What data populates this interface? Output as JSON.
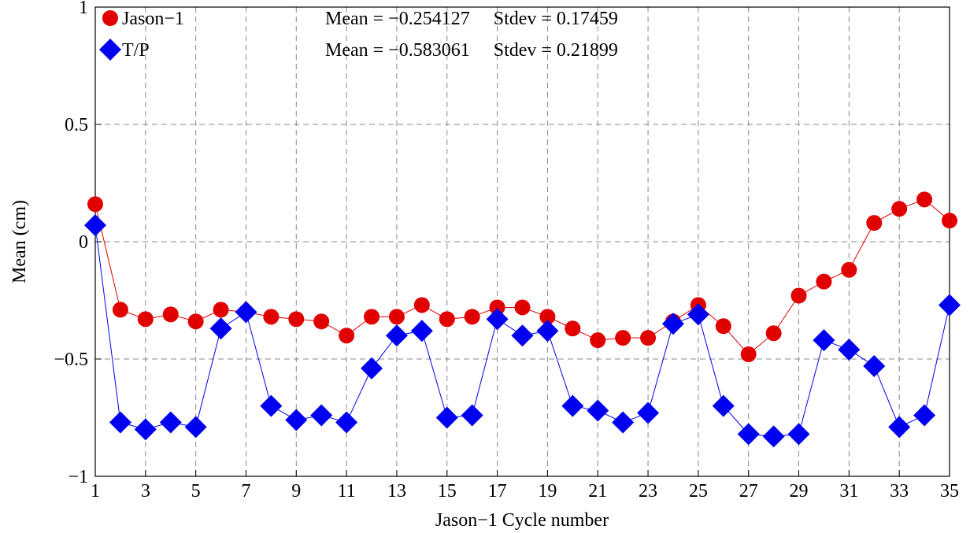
{
  "chart_data": {
    "type": "line",
    "title": "",
    "xlabel": "Jason−1 Cycle number",
    "ylabel": "Mean (cm)",
    "xlim": [
      1,
      35
    ],
    "ylim": [
      -1,
      1
    ],
    "x_ticks": [
      1,
      3,
      5,
      7,
      9,
      11,
      13,
      15,
      17,
      19,
      21,
      23,
      25,
      27,
      29,
      31,
      33,
      35
    ],
    "y_ticks": [
      -1,
      -0.5,
      0,
      0.5,
      1
    ],
    "y_tick_labels": [
      "−1",
      "−0.5",
      "0",
      "0.5",
      "1"
    ],
    "grid": true,
    "legend_position": "top-left",
    "x": [
      1,
      2,
      3,
      4,
      5,
      6,
      7,
      8,
      9,
      10,
      11,
      12,
      13,
      14,
      15,
      16,
      17,
      18,
      19,
      20,
      21,
      22,
      23,
      24,
      25,
      26,
      27,
      28,
      29,
      30,
      31,
      32,
      33,
      34,
      35
    ],
    "series": [
      {
        "name": "Jason−1",
        "color": "#e00000",
        "marker": "circle",
        "values": [
          0.16,
          -0.29,
          -0.33,
          -0.31,
          -0.34,
          -0.29,
          -0.3,
          -0.32,
          -0.33,
          -0.34,
          -0.4,
          -0.32,
          -0.32,
          -0.27,
          -0.33,
          -0.32,
          -0.28,
          -0.28,
          -0.32,
          -0.37,
          -0.42,
          -0.41,
          -0.41,
          -0.34,
          -0.27,
          -0.36,
          -0.48,
          -0.39,
          -0.23,
          -0.17,
          -0.12,
          0.08,
          0.14,
          0.18,
          0.09
        ],
        "stats_text": "Mean = −0.254127     Stdev = 0.17459"
      },
      {
        "name": "T/P",
        "color": "#0000f0",
        "marker": "diamond",
        "values": [
          0.07,
          -0.77,
          -0.8,
          -0.77,
          -0.79,
          -0.37,
          -0.3,
          -0.7,
          -0.76,
          -0.74,
          -0.77,
          -0.54,
          -0.4,
          -0.38,
          -0.75,
          -0.74,
          -0.33,
          -0.4,
          -0.38,
          -0.7,
          -0.72,
          -0.77,
          -0.73,
          -0.35,
          -0.31,
          -0.7,
          -0.82,
          -0.83,
          -0.82,
          -0.42,
          -0.46,
          -0.53,
          -0.79,
          -0.74,
          -0.27
        ],
        "stats_text": "Mean = −0.583061     Stdev = 0.21899"
      }
    ]
  }
}
